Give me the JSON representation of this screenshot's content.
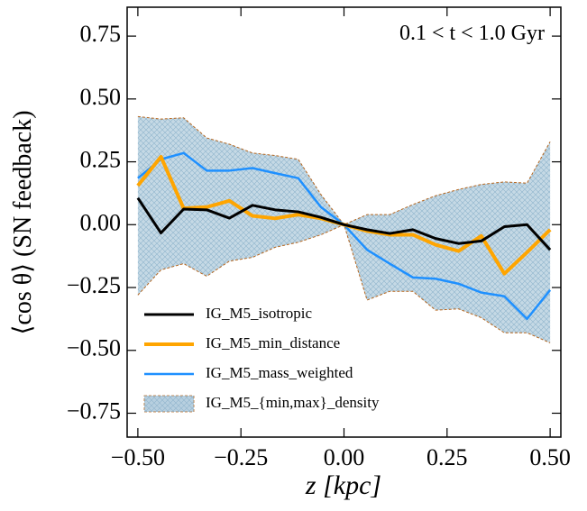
{
  "chart_data": {
    "type": "line",
    "x_label": "z [kpc]",
    "y_label": "⟨cos θ⟩ (SN feedback)",
    "annotation": "0.1 < t < 1.0 Gyr",
    "x": [
      -0.5,
      -0.444,
      -0.389,
      -0.333,
      -0.278,
      -0.222,
      -0.167,
      -0.111,
      -0.056,
      0,
      0.056,
      0.111,
      0.167,
      0.222,
      0.278,
      0.333,
      0.389,
      0.444,
      0.5
    ],
    "series": [
      {
        "name": "IG_M5_isotropic",
        "color": "#000000",
        "width": 3,
        "values": [
          0.106,
          -0.033,
          0.062,
          0.059,
          0.026,
          0.077,
          0.059,
          0.051,
          0.029,
          0.0,
          -0.02,
          -0.035,
          -0.02,
          -0.055,
          -0.075,
          -0.065,
          -0.008,
          0.0,
          -0.1
        ]
      },
      {
        "name": "IG_M5_min_distance",
        "color": "#ffa500",
        "width": 4,
        "values": [
          0.155,
          0.27,
          0.065,
          0.07,
          0.095,
          0.035,
          0.025,
          0.04,
          0.025,
          0.0,
          -0.025,
          -0.04,
          -0.04,
          -0.08,
          -0.105,
          -0.045,
          -0.195,
          -0.11,
          -0.02
        ]
      },
      {
        "name": "IG_M5_mass_weighted",
        "color": "#1e90ff",
        "width": 2.5,
        "values": [
          0.185,
          0.26,
          0.285,
          0.215,
          0.215,
          0.225,
          0.205,
          0.185,
          0.07,
          0.0,
          -0.1,
          -0.155,
          -0.21,
          -0.215,
          -0.235,
          -0.27,
          -0.285,
          -0.375,
          -0.26
        ]
      }
    ],
    "band": {
      "name": "IG_M5_{min,max}_density",
      "color": "#b7cfdf",
      "edge_color": "#b5651d",
      "upper": [
        0.43,
        0.42,
        0.425,
        0.345,
        0.32,
        0.285,
        0.275,
        0.26,
        0.12,
        0.0,
        0.04,
        0.04,
        0.08,
        0.115,
        0.14,
        0.16,
        0.17,
        0.165,
        0.33
      ],
      "lower": [
        -0.28,
        -0.18,
        -0.155,
        -0.205,
        -0.145,
        -0.13,
        -0.09,
        -0.07,
        -0.04,
        0.0,
        -0.3,
        -0.265,
        -0.265,
        -0.34,
        -0.335,
        -0.37,
        -0.43,
        -0.43,
        -0.47
      ]
    },
    "xlim": [
      -0.526,
      0.526
    ],
    "ylim": [
      -0.845,
      0.865
    ],
    "xticks": [
      {
        "value": -0.5,
        "label": "−0.50"
      },
      {
        "value": -0.25,
        "label": "−0.25"
      },
      {
        "value": 0,
        "label": "0.00"
      },
      {
        "value": 0.25,
        "label": "0.25"
      },
      {
        "value": 0.5,
        "label": "0.50"
      }
    ],
    "yticks": [
      {
        "value": -0.75,
        "label": "−0.75"
      },
      {
        "value": -0.5,
        "label": "−0.50"
      },
      {
        "value": -0.25,
        "label": "−0.25"
      },
      {
        "value": 0,
        "label": "0.00"
      },
      {
        "value": 0.25,
        "label": "0.25"
      },
      {
        "value": 0.5,
        "label": "0.50"
      },
      {
        "value": 0.75,
        "label": "0.75"
      }
    ],
    "legend": "lower left"
  }
}
